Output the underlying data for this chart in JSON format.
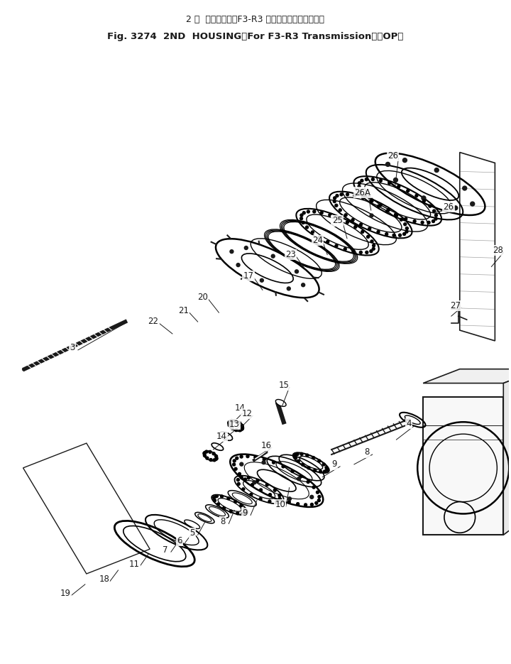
{
  "title_line1": "2 速  ハウジング（F3-R3 トランスミッション用）",
  "title_line2": "Fig. 3274  2ND  HOUSING（For F3-R3 Transmission）（OP）",
  "bg_color": "#ffffff",
  "line_color": "#1a1a1a",
  "fig_width": 7.2,
  "fig_height": 9.35,
  "dpi": 100
}
